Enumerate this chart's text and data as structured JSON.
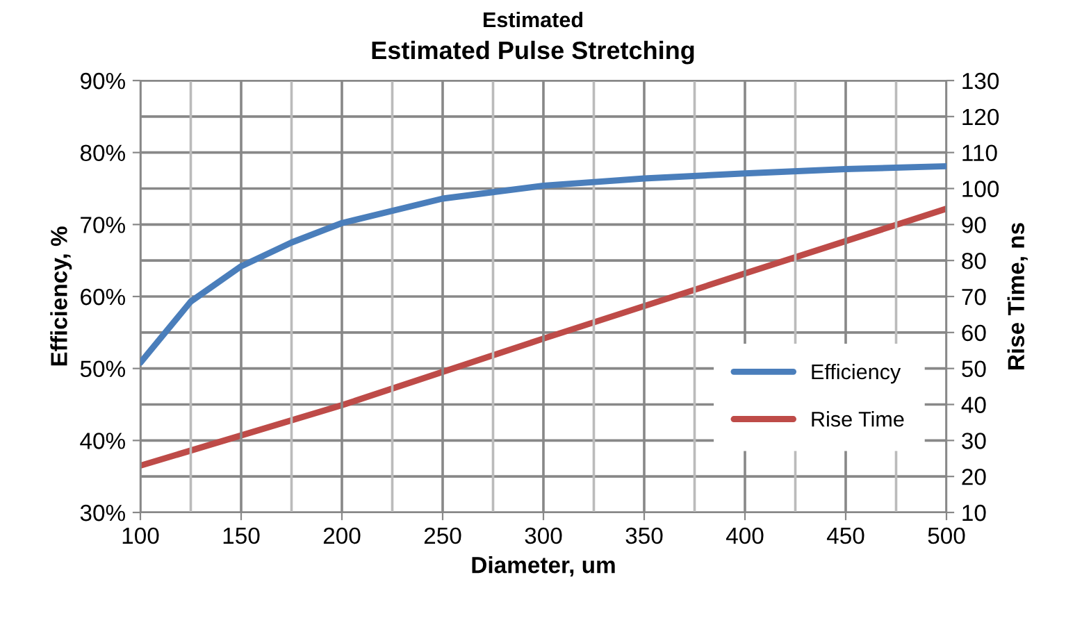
{
  "chart_data": {
    "type": "line",
    "title": "Estimated Pulse Stretching",
    "annotations": [
      "Estimated"
    ],
    "xlabel": "Diameter, um",
    "ylabel": "Efficiency, %",
    "y2label": "Rise Time, ns",
    "x": [
      100,
      125,
      150,
      175,
      200,
      250,
      300,
      350,
      400,
      450,
      500
    ],
    "series": [
      {
        "name": "Efficiency",
        "color": "#4a7ebb",
        "values": [
          50.8,
          59.3,
          64.2,
          67.5,
          70.2,
          73.6,
          75.4,
          76.4,
          77.1,
          77.7,
          78.1
        ]
      },
      {
        "name": "Rise Time",
        "color": "#be4b48",
        "axis": "y2",
        "x": [
          100,
          200,
          300,
          400,
          500
        ],
        "values": [
          23,
          39.8,
          58.3,
          76.4,
          94.4
        ]
      }
    ],
    "xlim": [
      100,
      500
    ],
    "xticks": [
      100,
      150,
      200,
      250,
      300,
      350,
      400,
      450,
      500
    ],
    "ylim": [
      30,
      90
    ],
    "yticks": [
      {
        "value": 30,
        "label": "30%"
      },
      {
        "value": 40,
        "label": "40%"
      },
      {
        "value": 50,
        "label": "50%"
      },
      {
        "value": 60,
        "label": "60%"
      },
      {
        "value": 70,
        "label": "70%"
      },
      {
        "value": 80,
        "label": "80%"
      },
      {
        "value": 90,
        "label": "90%"
      }
    ],
    "y2lim": [
      10,
      130
    ],
    "y2ticks": [
      10,
      20,
      30,
      40,
      50,
      60,
      70,
      80,
      90,
      100,
      110,
      120,
      130
    ],
    "grid": true,
    "legend": "bottom right",
    "line_style": "solid",
    "marker": "none"
  }
}
